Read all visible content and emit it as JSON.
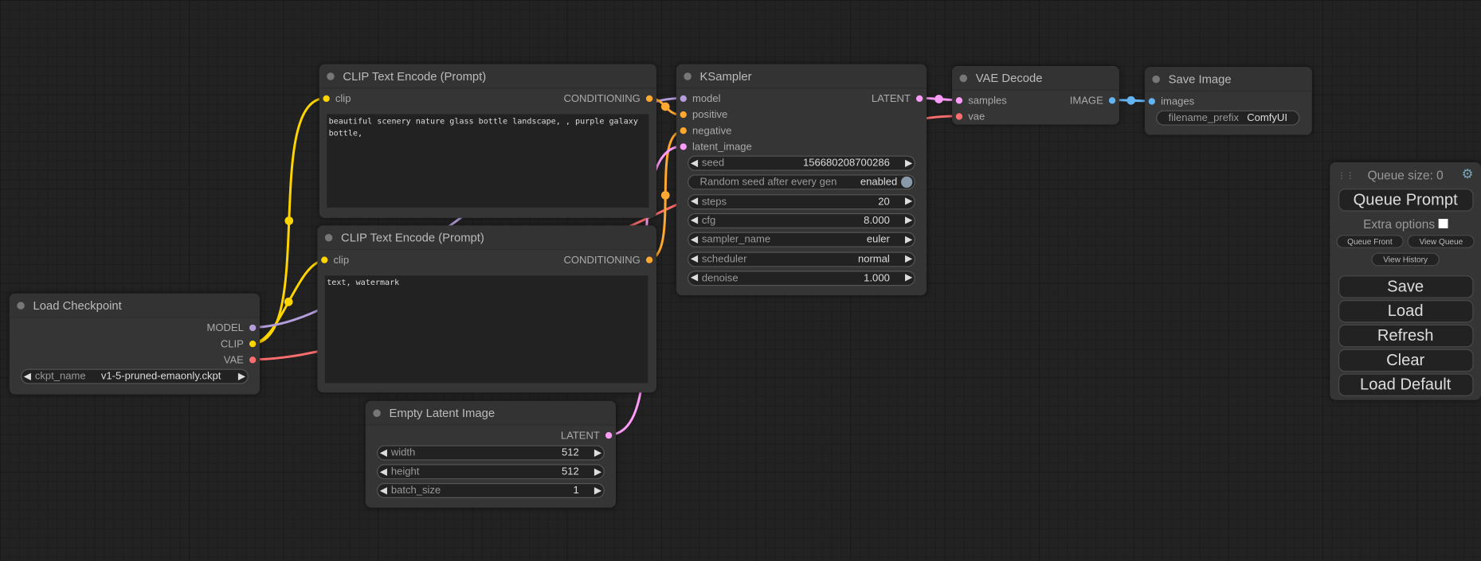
{
  "colors": {
    "clip": "#ffd500",
    "model": "#b39ddb",
    "vae": "#ff6e6e",
    "conditioning": "#ffa931",
    "latent": "#ff9cf9",
    "image": "#64b5f6"
  },
  "nodes": {
    "clip_pos": {
      "title": "CLIP Text Encode (Prompt)",
      "input": "clip",
      "output": "CONDITIONING",
      "text": "beautiful scenery nature glass bottle landscape, , purple galaxy bottle,"
    },
    "clip_neg": {
      "title": "CLIP Text Encode (Prompt)",
      "input": "clip",
      "output": "CONDITIONING",
      "text": "text, watermark"
    },
    "checkpoint": {
      "title": "Load Checkpoint",
      "outputs": [
        "MODEL",
        "CLIP",
        "VAE"
      ],
      "ckpt_label": "ckpt_name",
      "ckpt_value": "v1-5-pruned-emaonly.ckpt"
    },
    "latent": {
      "title": "Empty Latent Image",
      "output": "LATENT",
      "widgets": [
        {
          "label": "width",
          "value": "512"
        },
        {
          "label": "height",
          "value": "512"
        },
        {
          "label": "batch_size",
          "value": "1"
        }
      ]
    },
    "ksampler": {
      "title": "KSampler",
      "inputs": [
        "model",
        "positive",
        "negative",
        "latent_image"
      ],
      "output": "LATENT",
      "widgets": [
        {
          "label": "seed",
          "value": "156680208700286"
        },
        {
          "label": "Random seed after every gen",
          "value": "enabled",
          "toggle": true
        },
        {
          "label": "steps",
          "value": "20"
        },
        {
          "label": "cfg",
          "value": "8.000"
        },
        {
          "label": "sampler_name",
          "value": "euler"
        },
        {
          "label": "scheduler",
          "value": "normal"
        },
        {
          "label": "denoise",
          "value": "1.000"
        }
      ]
    },
    "vae_decode": {
      "title": "VAE Decode",
      "inputs": [
        "samples",
        "vae"
      ],
      "output": "IMAGE"
    },
    "save_image": {
      "title": "Save Image",
      "input": "images",
      "prefix_label": "filename_prefix",
      "prefix_value": "ComfyUI"
    }
  },
  "panel": {
    "queue_size": "Queue size: 0",
    "queue_prompt": "Queue Prompt",
    "extra_options": "Extra options",
    "extra_checked": false,
    "queue_front": "Queue Front",
    "view_queue": "View Queue",
    "view_history": "View History",
    "save": "Save",
    "load": "Load",
    "refresh": "Refresh",
    "clear": "Clear",
    "load_default": "Load Default",
    "settings_icon": "gear-icon"
  }
}
